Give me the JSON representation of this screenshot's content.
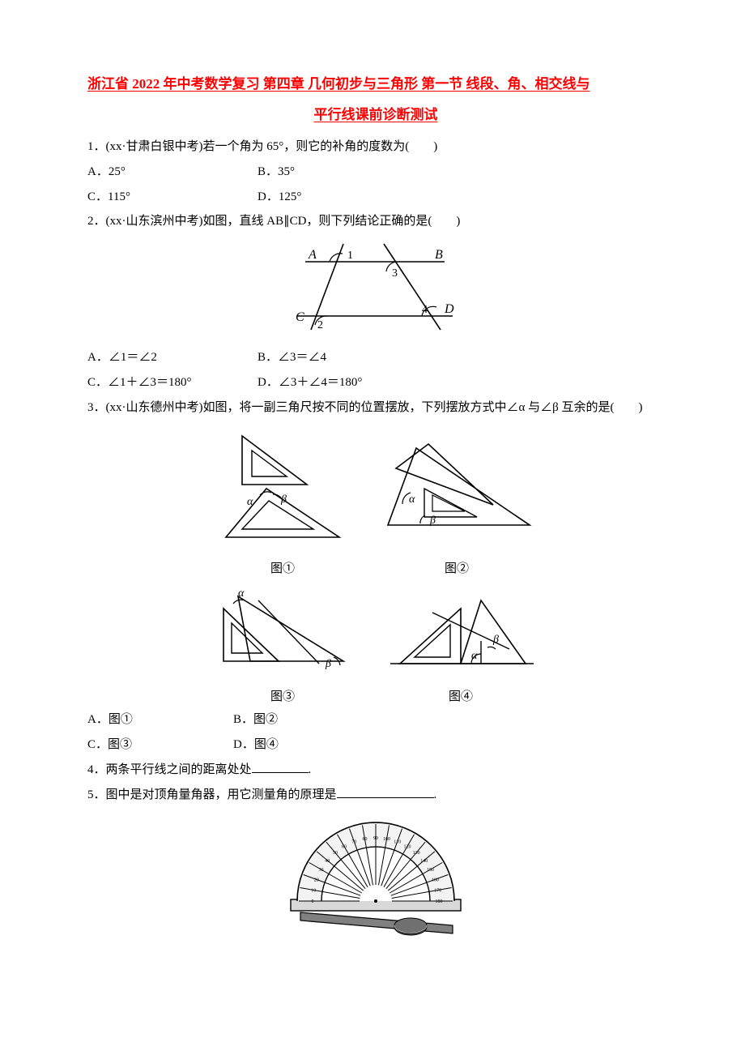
{
  "doc": {
    "title_line1": "浙江省 2022 年中考数学复习 第四章 几何初步与三角形 第一节 线段、角、相交线与",
    "title_line2": "平行线课前诊断测试",
    "q1": {
      "stem": "1．(xx·甘肃白银中考)若一个角为 65°，则它的补角的度数为(　　)",
      "optA": "A．25°",
      "optB": "B．35°",
      "optC": "C．115°",
      "optD": "D．125°"
    },
    "q2": {
      "stem": "2．(xx·山东滨州中考)如图，直线 AB∥CD，则下列结论正确的是(　　)",
      "optA": "A．∠1＝∠2",
      "optB": "B．∠3＝∠4",
      "optC": "C．∠1＋∠3＝180°",
      "optD": "D．∠3＋∠4＝180°",
      "labels": {
        "A": "A",
        "B": "B",
        "C": "C",
        "D": "D",
        "a1": "1",
        "a2": "2",
        "a3": "3",
        "a4": "4"
      }
    },
    "q3": {
      "stem": "3．(xx·山东德州中考)如图，将一副三角尺按不同的位置摆放，下列摆放方式中∠α 与∠β 互余的是(　　)",
      "cap1": "图①",
      "cap2": "图②",
      "cap3": "图③",
      "cap4": "图④",
      "alpha": "α",
      "beta": "β",
      "optA": "A．图①",
      "optB": "B．图②",
      "optC": "C．图③",
      "optD": "D．图④"
    },
    "q4": {
      "stem_pre": "4．两条平行线之间的距离处处",
      "stem_post": "."
    },
    "q5": {
      "stem_pre": "5．图中是对顶角量角器，用它测量角的原理是",
      "stem_post": "."
    },
    "protractor_ticks": [
      "0",
      "10",
      "20",
      "30",
      "40",
      "50",
      "60",
      "70",
      "80",
      "90",
      "100",
      "110",
      "120",
      "130",
      "140",
      "150",
      "160",
      "170",
      "180"
    ],
    "colors": {
      "text": "#000000",
      "title": "#ff0000",
      "bg": "#ffffff"
    }
  }
}
